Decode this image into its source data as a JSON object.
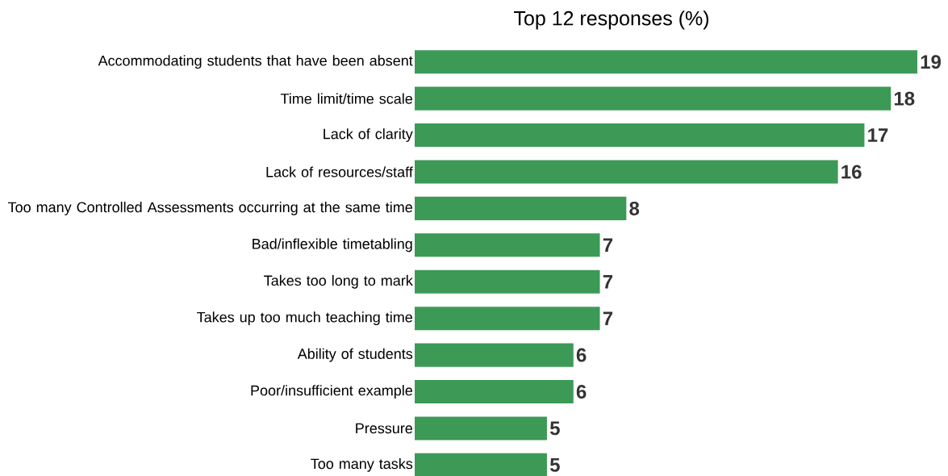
{
  "chart_data": {
    "type": "bar",
    "orientation": "horizontal",
    "title": "Top 12 responses (%)",
    "categories": [
      "Accommodating students that have been absent",
      "Time limit/time scale",
      "Lack of clarity",
      "Lack of resources/staff",
      "Too many Controlled Assessments occurring at the same time",
      "Bad/inflexible timetabling",
      "Takes too long to mark",
      "Takes up too much teaching time",
      "Ability of students",
      "Poor/insufficient example",
      "Pressure",
      "Too many tasks"
    ],
    "values": [
      19,
      18,
      17,
      16,
      8,
      7,
      7,
      7,
      6,
      6,
      5,
      5
    ],
    "color": "#3c9a56",
    "data_labels": true
  }
}
